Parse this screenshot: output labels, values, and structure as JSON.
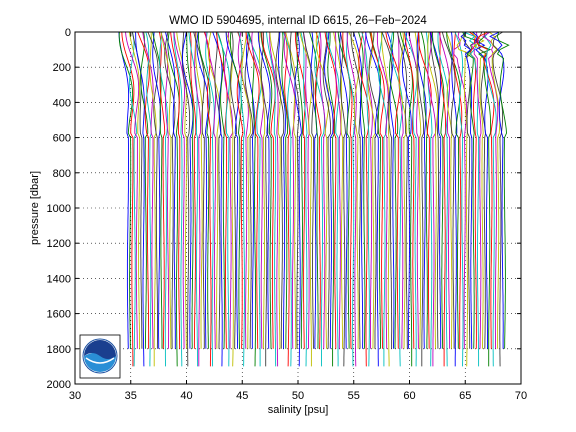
{
  "chart_data": {
    "type": "line",
    "title": "WMO ID 5904695, internal ID 6615, 26−Feb−2024",
    "xlabel": "salinity [psu]",
    "ylabel": "pressure [dbar]",
    "xlim": [
      30,
      70
    ],
    "ylim": [
      0,
      2000
    ],
    "y_reversed": true,
    "x_ticks": [
      30,
      35,
      40,
      45,
      50,
      55,
      60,
      65,
      70
    ],
    "y_ticks": [
      0,
      200,
      400,
      600,
      800,
      1000,
      1200,
      1400,
      1600,
      1800,
      2000
    ],
    "grid": true,
    "profile_offset_psu": 0.2,
    "profile_count": 170,
    "first_profile_deep_salinity": 34.75,
    "profile_color_cycle": [
      "#0000ff",
      "#008000",
      "#ff0000",
      "#00bfbf",
      "#bf00bf",
      "#bfbf00",
      "#404040"
    ],
    "profile_max_pressure": [
      1800,
      1900
    ],
    "logo": "noaa-logo"
  }
}
